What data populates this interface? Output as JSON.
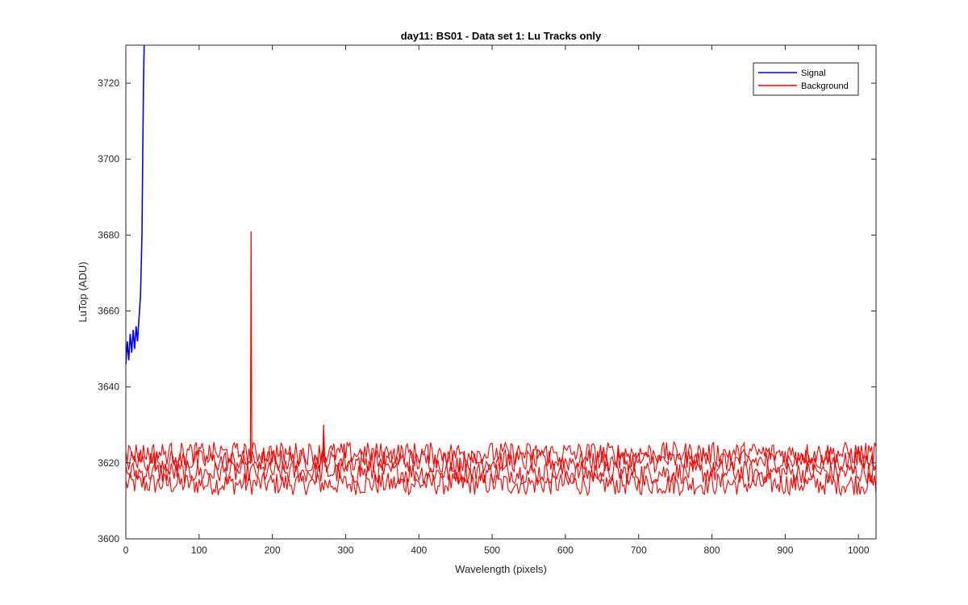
{
  "chart_data": {
    "type": "line",
    "title": "day11: BS01 - Data set 1: Lu Tracks only",
    "xlabel": "Wavelength (pixels)",
    "ylabel": "LuTop (ADU)",
    "xlim": [
      0,
      1024
    ],
    "ylim": [
      3600,
      3730
    ],
    "xticks": [
      0,
      100,
      200,
      300,
      400,
      500,
      600,
      700,
      800,
      900,
      1000
    ],
    "yticks": [
      3600,
      3620,
      3640,
      3660,
      3680,
      3700,
      3720
    ],
    "grid": false,
    "legend_position": "top-right",
    "series": [
      {
        "name": "Signal",
        "color": "#0000ff",
        "x": [
          0,
          2,
          4,
          6,
          8,
          10,
          12,
          14,
          16,
          18,
          20,
          22,
          23,
          24,
          25
        ],
        "y": [
          3646,
          3652,
          3647,
          3654,
          3649,
          3655,
          3650,
          3656,
          3652,
          3658,
          3664,
          3680,
          3700,
          3718,
          3730
        ]
      },
      {
        "name": "Background",
        "color": "#ff0000",
        "x_range": [
          0,
          1024
        ],
        "band_center": [
          3614.5,
          3617.5,
          3620.5,
          3622.5
        ],
        "band_amplitude": 3,
        "spikes": [
          {
            "x": 171,
            "y": 3681
          },
          {
            "x": 270,
            "y": 3630
          }
        ]
      }
    ]
  }
}
